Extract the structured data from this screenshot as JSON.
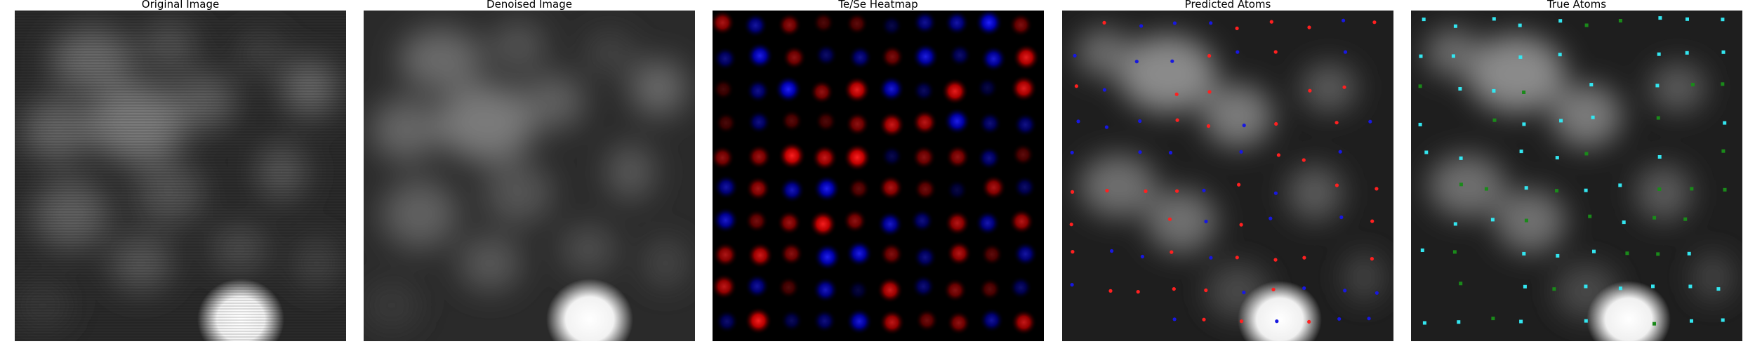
{
  "figure": {
    "panels": [
      {
        "title": "Original Image"
      },
      {
        "title": "Denoised Image"
      },
      {
        "title": "Te/Se Heatmap"
      },
      {
        "title": "Predicted Atoms"
      },
      {
        "title": "True Atoms"
      }
    ]
  },
  "colors": {
    "heatmap_red": "#ff1a1a",
    "heatmap_blue": "#1a1aff",
    "predicted_red": "#ff2020",
    "predicted_blue": "#1818e0",
    "true_cyan": "#33e6f0",
    "true_green": "#1a8a1a"
  }
}
